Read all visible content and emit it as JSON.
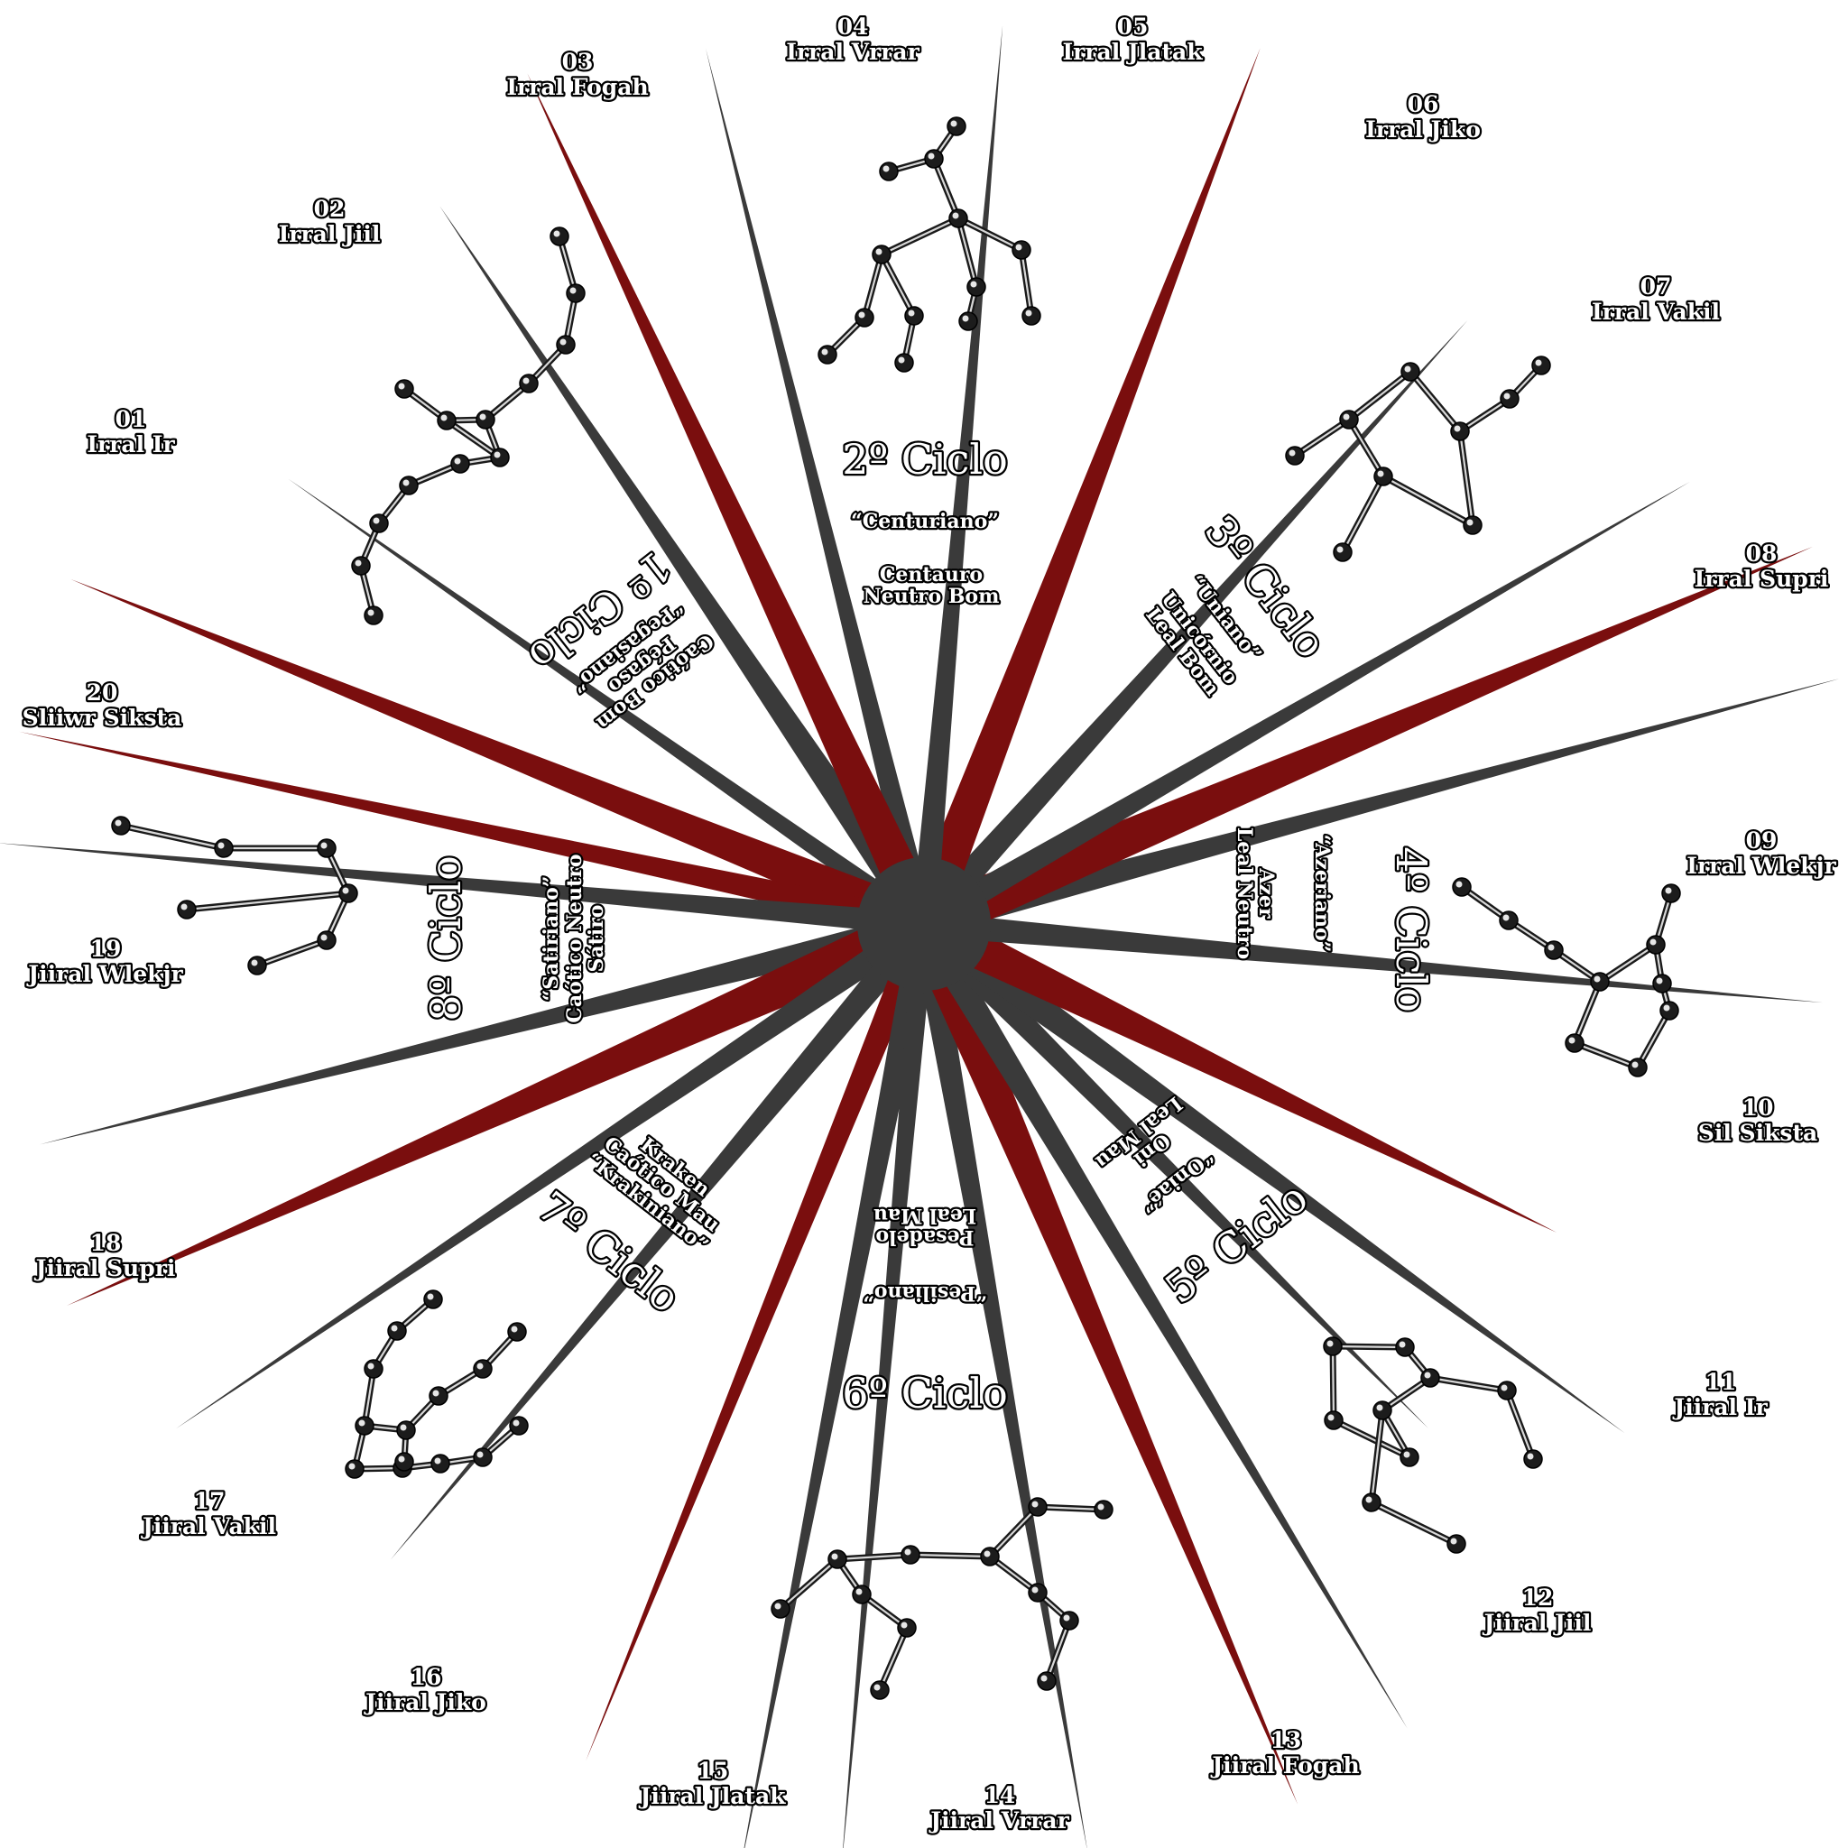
{
  "colors": {
    "grey_ray": "#3a3a3a",
    "red_ray": "#7a0e0e",
    "hub": "#3a3a3a",
    "label_fill": "#ffffff",
    "label_outline": "#000000",
    "constellation": "#1a1a1a"
  },
  "months": [
    {
      "num": "01",
      "name": "Irral Ir"
    },
    {
      "num": "02",
      "name": "Irral Jiil"
    },
    {
      "num": "03",
      "name": "Irral Fogah"
    },
    {
      "num": "04",
      "name": "Irral Vrrar"
    },
    {
      "num": "05",
      "name": "Irral Jlatak"
    },
    {
      "num": "06",
      "name": "Irral Jiko"
    },
    {
      "num": "07",
      "name": "Irral Vakil"
    },
    {
      "num": "08",
      "name": "Irral Supri"
    },
    {
      "num": "09",
      "name": "Irral Wlekjr"
    },
    {
      "num": "10",
      "name": "Sil Siksta"
    },
    {
      "num": "11",
      "name": "Jiiral Ir"
    },
    {
      "num": "12",
      "name": "Jiiral Jiil"
    },
    {
      "num": "13",
      "name": "Jiiral Fogah"
    },
    {
      "num": "14",
      "name": "Jiiral Vrrar"
    },
    {
      "num": "15",
      "name": "Jiiral Jlatak"
    },
    {
      "num": "16",
      "name": "Jiiral Jiko"
    },
    {
      "num": "17",
      "name": "Jiiral Vakil"
    },
    {
      "num": "18",
      "name": "Jiiral Supri"
    },
    {
      "num": "19",
      "name": "Jiiral Wlekjr"
    },
    {
      "num": "20",
      "name": "Sliiwr Siksta"
    }
  ],
  "cycles": [
    {
      "title": "1º Ciclo",
      "demonym": "“Pegasiano”",
      "creature": "Pégaso",
      "alignment": "Caótico Bom"
    },
    {
      "title": "2º Ciclo",
      "demonym": "“Centuriano”",
      "creature": "Centauro",
      "alignment": "Neutro Bom"
    },
    {
      "title": "3º Ciclo",
      "demonym": "“Uniano”",
      "creature": "Unicórnio",
      "alignment": "Leal Bom"
    },
    {
      "title": "4º Ciclo",
      "demonym": "“Azeriano”",
      "creature": "Azer",
      "alignment": "Leal Neutro"
    },
    {
      "title": "5º Ciclo",
      "demonym": "“Oniaé”",
      "creature": "Oni",
      "alignment": "Leal Mau"
    },
    {
      "title": "6º Ciclo",
      "demonym": "“Pesiliano”",
      "creature": "Pesadelo",
      "alignment": "Leal Mau"
    },
    {
      "title": "7º Ciclo",
      "demonym": "“Krakiniano”",
      "creature": "Kraken",
      "alignment": "Caótico Mau"
    },
    {
      "title": "8º Ciclo",
      "demonym": "“Satiriano”",
      "creature": "Sátiro",
      "alignment": "Caótico Neutro"
    }
  ]
}
